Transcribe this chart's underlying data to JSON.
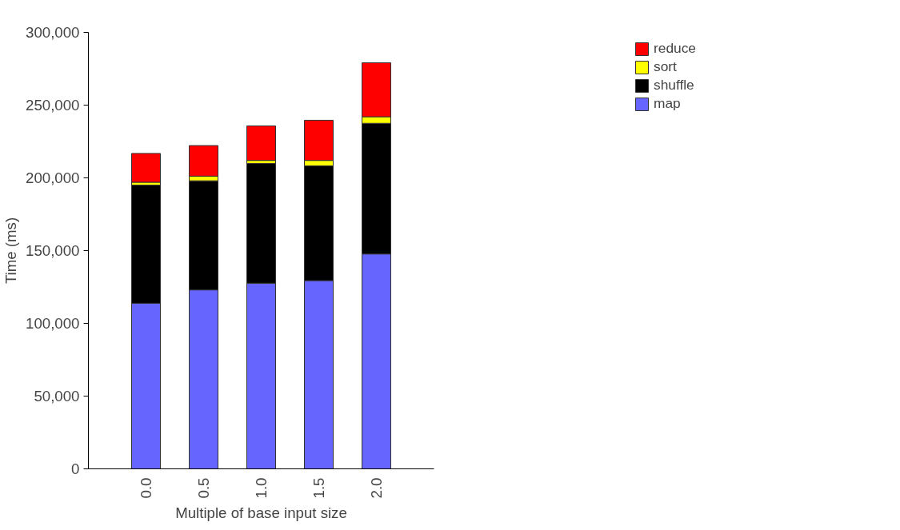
{
  "chart_data": {
    "type": "bar",
    "stacked": true,
    "xlabel": "Multiple of base input size",
    "ylabel": "Time (ms)",
    "categories": [
      "0.0",
      "0.5",
      "1.0",
      "1.5",
      "2.0"
    ],
    "series": [
      {
        "name": "map",
        "color": "#6666ff",
        "values": [
          113800,
          123000,
          127600,
          129400,
          147700
        ]
      },
      {
        "name": "shuffle",
        "color": "#000000",
        "values": [
          81200,
          75000,
          82300,
          78900,
          89800
        ]
      },
      {
        "name": "sort",
        "color": "#ffff00",
        "values": [
          2000,
          3200,
          2100,
          3700,
          4500
        ]
      },
      {
        "name": "reduce",
        "color": "#ff0000",
        "values": [
          19800,
          21000,
          23700,
          27600,
          37100
        ]
      }
    ],
    "ylim": [
      0,
      300000
    ],
    "yticks": [
      {
        "value": 0,
        "label": "0"
      },
      {
        "value": 50000,
        "label": "50,000"
      },
      {
        "value": 100000,
        "label": "100,000"
      },
      {
        "value": 150000,
        "label": "150,000"
      },
      {
        "value": 200000,
        "label": "200,000"
      },
      {
        "value": 250000,
        "label": "250,000"
      },
      {
        "value": 300000,
        "label": "300,000"
      }
    ],
    "grid": false,
    "legend": "top right"
  }
}
